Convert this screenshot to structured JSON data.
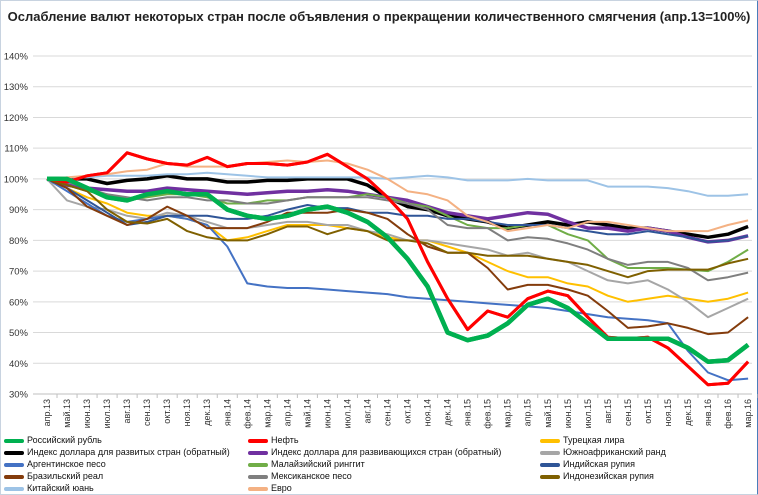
{
  "chart_data": {
    "type": "line",
    "title": "Ослабление валют некоторых стран после объявления о прекращении количественного смягчения  (апр.13=100%)",
    "xlabel": "",
    "ylabel": "",
    "ylim": [
      30,
      140
    ],
    "yticks": [
      "30%",
      "40%",
      "50%",
      "60%",
      "70%",
      "80%",
      "90%",
      "100%",
      "110%",
      "120%",
      "130%",
      "140%"
    ],
    "grid": true,
    "legend_position": "bottom",
    "categories": [
      "апр.13",
      "май.13",
      "июн.13",
      "июл.13",
      "авг.13",
      "сен.13",
      "окт.13",
      "ноя.13",
      "дек.13",
      "янв.14",
      "фев.14",
      "мар.14",
      "апр.14",
      "май.14",
      "июн.14",
      "июл.14",
      "авг.14",
      "сен.14",
      "окт.14",
      "ноя.14",
      "дек.14",
      "янв.15",
      "фев.15",
      "мар.15",
      "апр.15",
      "май.15",
      "июн.15",
      "июл.15",
      "авг.15",
      "сен.15",
      "окт.15",
      "ноя.15",
      "дек.15",
      "янв.16",
      "фев.16",
      "мар.16"
    ],
    "series": [
      {
        "name": "Российский рубль",
        "color": "#00b050",
        "values": [
          100,
          100,
          97,
          94,
          93,
          95,
          96,
          95,
          95,
          90,
          88,
          87,
          88,
          90,
          91,
          89,
          86,
          81,
          74,
          65,
          50,
          47.5,
          49,
          53,
          59,
          61,
          58,
          53,
          48,
          48,
          48,
          48,
          45,
          40.5,
          41,
          46
        ]
      },
      {
        "name": "Нефть",
        "color": "#ff0000",
        "values": [
          100,
          99,
          101,
          102,
          108.5,
          106.5,
          105,
          104.5,
          107,
          104,
          105,
          105,
          104.5,
          105.5,
          108,
          104,
          100,
          94,
          87,
          73,
          61,
          51,
          57,
          55,
          61,
          63.5,
          62,
          55,
          48.5,
          48,
          48.5,
          45,
          39,
          33,
          33.5,
          40.5
        ]
      },
      {
        "name": "Турецкая лира",
        "color": "#ffc000",
        "values": [
          100,
          97,
          94,
          92,
          89,
          88,
          88,
          87,
          85,
          80,
          81,
          83,
          85,
          85,
          85,
          84,
          83,
          81,
          80,
          80,
          78,
          76,
          73,
          70,
          68,
          68,
          66,
          65,
          62,
          60,
          61,
          62,
          61,
          60,
          61,
          63
        ]
      },
      {
        "name": "Индекс доллара для развитых стран (обратный)",
        "color": "#000000",
        "values": [
          100,
          100,
          100,
          98.5,
          99.5,
          100,
          101,
          100,
          100,
          99,
          99,
          99.5,
          99.5,
          100,
          100,
          100,
          98,
          94,
          91,
          90,
          88,
          87,
          86,
          84,
          85,
          86,
          85,
          86,
          85,
          84,
          84,
          83,
          82,
          81,
          82,
          84.5
        ]
      },
      {
        "name": "Индекс доллара для развивающихся стран (обратный)",
        "color": "#7030a0",
        "values": [
          100,
          98,
          97,
          96.5,
          96,
          96,
          97,
          96.5,
          96,
          95.5,
          95,
          95.5,
          96,
          96,
          96.5,
          96,
          95,
          94,
          93,
          91,
          89,
          88,
          87,
          88,
          89,
          88.5,
          86,
          84,
          84,
          83,
          84,
          83,
          81,
          79.5,
          80,
          81.5
        ]
      },
      {
        "name": "Южноафриканский ранд",
        "color": "#a6a6a6",
        "values": [
          100,
          93,
          91,
          90,
          88,
          87,
          89,
          88,
          86,
          84,
          84,
          85,
          86,
          86,
          85,
          85,
          83,
          82,
          80,
          80,
          79,
          78,
          77,
          75,
          76,
          74,
          73,
          70,
          67,
          66,
          67,
          64,
          60,
          55,
          58,
          61
        ]
      },
      {
        "name": "Аргентинское песо",
        "color": "#4472c4",
        "values": [
          100,
          96,
          92,
          88,
          86,
          87,
          88,
          87,
          85,
          78,
          66,
          65,
          64.5,
          64.5,
          64,
          63.5,
          63,
          62.5,
          61.5,
          61,
          60.5,
          60,
          59.5,
          59,
          58.5,
          58,
          57,
          56,
          55,
          54.5,
          54,
          53,
          44,
          37,
          34.5,
          35
        ]
      },
      {
        "name": "Малайзийский ринггит",
        "color": "#70ad47",
        "values": [
          100,
          98,
          96,
          95,
          93,
          94,
          95,
          95,
          94,
          92,
          92,
          93,
          93,
          94,
          94,
          94,
          95,
          94,
          92,
          91,
          88,
          85,
          84,
          84,
          85,
          85,
          82,
          80,
          74,
          71,
          71,
          71,
          70.5,
          70,
          73,
          77
        ]
      },
      {
        "name": "Индийская рупия",
        "color": "#2f5597",
        "values": [
          100,
          97,
          93,
          89,
          85,
          86,
          88,
          88,
          88,
          87,
          87,
          88,
          90,
          91.5,
          90.5,
          90.5,
          89,
          89,
          88,
          88,
          87,
          87,
          86,
          85,
          85,
          85,
          84,
          83,
          82,
          82,
          83,
          82,
          81,
          79.5,
          80,
          81.5
        ]
      },
      {
        "name": "Бразильский реал",
        "color": "#843c0c",
        "values": [
          100,
          97,
          91,
          88,
          85,
          87,
          91,
          88,
          84,
          84,
          84,
          86,
          89,
          89,
          89,
          90,
          89,
          87,
          82,
          78,
          76,
          76,
          71,
          64,
          65.5,
          65.5,
          64,
          62,
          57,
          51.5,
          52,
          53,
          51.5,
          49.5,
          50,
          55
        ]
      },
      {
        "name": "Мексиканское песо",
        "color": "#7f7f7f",
        "values": [
          100,
          99,
          97,
          95,
          94,
          93,
          94,
          94,
          93,
          93,
          92,
          92,
          93,
          94,
          94,
          94,
          94,
          93,
          92,
          90,
          85,
          84,
          84,
          80,
          81,
          80.5,
          79,
          77,
          74,
          72,
          73,
          73,
          71,
          67,
          68,
          69.5
        ]
      },
      {
        "name": "Индонезийская рупия",
        "color": "#7f6000",
        "values": [
          100,
          98,
          96,
          90,
          86,
          85.5,
          87,
          83,
          81,
          80,
          80,
          82,
          84.5,
          84.5,
          82,
          84,
          83,
          80,
          80,
          79,
          76,
          76,
          75,
          75,
          75,
          74,
          73,
          72,
          70,
          68,
          70,
          70.5,
          70.5,
          70.5,
          72.5,
          74
        ]
      },
      {
        "name": "Китайский юань",
        "color": "#9dc3e6",
        "values": [
          100,
          100.5,
          100.5,
          101,
          101,
          101,
          101.5,
          101.5,
          102,
          101.5,
          101,
          100.5,
          100.5,
          100.5,
          100.5,
          100.5,
          100.5,
          100,
          100.5,
          101,
          100.5,
          99.5,
          99.5,
          99.5,
          100,
          99.5,
          99.5,
          99.5,
          97.5,
          97.5,
          97.5,
          97,
          96,
          94.5,
          94.5,
          95
        ]
      },
      {
        "name": "Евро",
        "color": "#f4b183",
        "values": [
          100,
          100.5,
          101,
          101.5,
          102.5,
          103,
          105,
          104,
          104,
          104,
          105,
          105.5,
          106,
          105.5,
          106,
          105,
          103,
          100,
          96,
          95,
          93,
          88,
          86,
          83,
          84,
          85,
          84,
          86,
          86,
          85,
          84,
          83,
          83,
          83,
          85,
          86.5
        ]
      }
    ]
  }
}
